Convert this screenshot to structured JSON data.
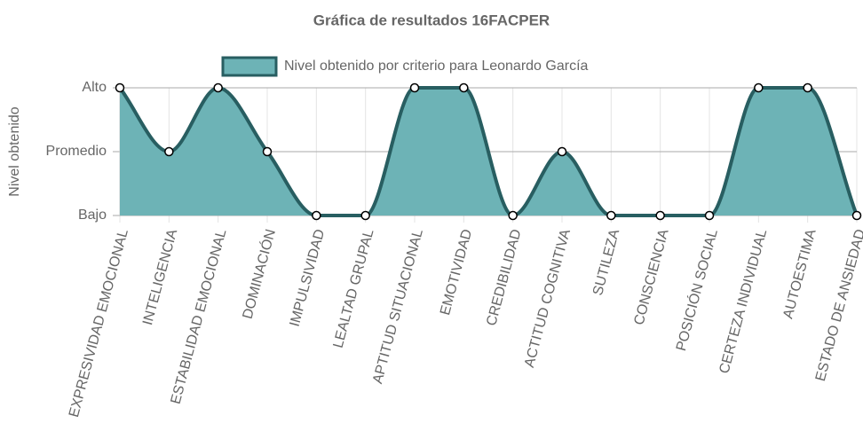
{
  "chart_data": {
    "type": "line",
    "title": "Gráfica de resultados 16FACPER",
    "y_label": "Nivel obtenido",
    "categories": [
      "EXPRESIVIDAD EMOCIONAL",
      "INTELIGENCIA",
      "ESTABILIDAD EMOCIONAL",
      "DOMINACIÓN",
      "IMPULSIVIDAD",
      "LEALTAD GRUPAL",
      "APTITUD SITUACIONAL",
      "EMOTIVIDAD",
      "CREDIBILIDAD",
      "ACTITUD COGNITIVA",
      "SUTILEZA",
      "CONSCIENCIA",
      "POSICIÓN SOCIAL",
      "CERTEZA INDIVIDUAL",
      "AUTOESTIMA",
      "ESTADO DE ANSIEDAD"
    ],
    "series": [
      {
        "name": "Nivel obtenido por criterio para Leonardo García",
        "color": "#285e61",
        "fill": "#6db3b6",
        "values": [
          3,
          2,
          3,
          2,
          1,
          1,
          3,
          3,
          1,
          2,
          1,
          1,
          1,
          3,
          3,
          1
        ]
      }
    ],
    "ylim": [
      1,
      3
    ],
    "yticks": [
      {
        "value": 1,
        "label": "Bajo"
      },
      {
        "value": 2,
        "label": "Promedio"
      },
      {
        "value": 3,
        "label": "Alto"
      }
    ],
    "grid": true,
    "legend": "top"
  }
}
